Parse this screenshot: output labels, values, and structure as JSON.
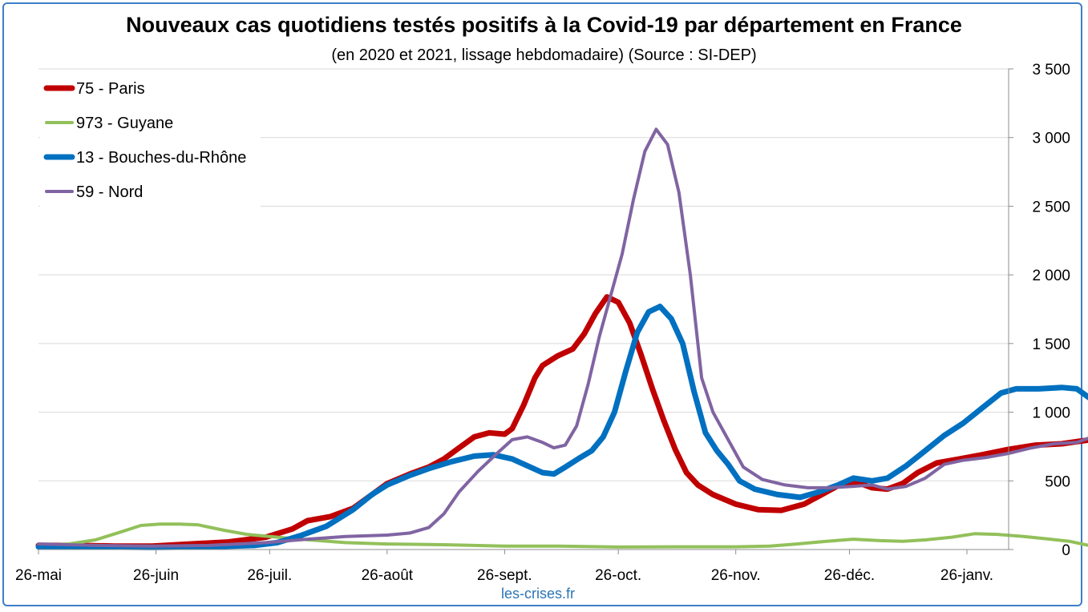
{
  "chart_data": {
    "type": "line",
    "title": "Nouveaux cas quotidiens testés positifs à la Covid-19 par département en France",
    "subtitle": "(en 2020 et 2021, lissage hebdomadaire) (Source : SI-DEP)",
    "source_credit": "les-crises.fr",
    "x_tick_labels": [
      "26-mai",
      "26-juin",
      "26-juil.",
      "26-août",
      "26-sept.",
      "26-oct.",
      "26-nov.",
      "26-déc.",
      "26-janv."
    ],
    "ylim": [
      0,
      3500
    ],
    "y_ticks": [
      0,
      500,
      1000,
      1500,
      2000,
      2500,
      3000,
      3500
    ],
    "y_tick_labels": [
      "0",
      "500",
      "1 000",
      "1 500",
      "2 000",
      "2 500",
      "3 000",
      "3 500"
    ],
    "y_axis_position": "right",
    "grid": true,
    "legend_position": "top-left",
    "x_start": "2020-05-26",
    "x_end": "2021-02-06",
    "series": [
      {
        "name": "75 - Paris",
        "color": "#c00000",
        "width": 7,
        "points": [
          [
            "2020-05-26",
            30
          ],
          [
            "2020-06-05",
            30
          ],
          [
            "2020-06-15",
            25
          ],
          [
            "2020-06-25",
            25
          ],
          [
            "2020-07-05",
            40
          ],
          [
            "2020-07-15",
            55
          ],
          [
            "2020-07-25",
            90
          ],
          [
            "2020-08-01",
            150
          ],
          [
            "2020-08-05",
            210
          ],
          [
            "2020-08-11",
            240
          ],
          [
            "2020-08-17",
            300
          ],
          [
            "2020-08-22",
            400
          ],
          [
            "2020-08-26",
            480
          ],
          [
            "2020-09-01",
            550
          ],
          [
            "2020-09-06",
            600
          ],
          [
            "2020-09-10",
            660
          ],
          [
            "2020-09-14",
            740
          ],
          [
            "2020-09-18",
            820
          ],
          [
            "2020-09-22",
            850
          ],
          [
            "2020-09-26",
            840
          ],
          [
            "2020-09-28",
            880
          ],
          [
            "2020-10-01",
            1050
          ],
          [
            "2020-10-04",
            1250
          ],
          [
            "2020-10-06",
            1340
          ],
          [
            "2020-10-10",
            1410
          ],
          [
            "2020-10-14",
            1460
          ],
          [
            "2020-10-17",
            1570
          ],
          [
            "2020-10-20",
            1720
          ],
          [
            "2020-10-23",
            1840
          ],
          [
            "2020-10-26",
            1800
          ],
          [
            "2020-10-29",
            1650
          ],
          [
            "2020-11-01",
            1420
          ],
          [
            "2020-11-04",
            1170
          ],
          [
            "2020-11-07",
            940
          ],
          [
            "2020-11-10",
            730
          ],
          [
            "2020-11-13",
            560
          ],
          [
            "2020-11-16",
            470
          ],
          [
            "2020-11-20",
            400
          ],
          [
            "2020-11-26",
            330
          ],
          [
            "2020-12-02",
            290
          ],
          [
            "2020-12-08",
            285
          ],
          [
            "2020-12-14",
            330
          ],
          [
            "2020-12-20",
            420
          ],
          [
            "2020-12-24",
            480
          ],
          [
            "2020-12-28",
            490
          ],
          [
            "2021-01-01",
            450
          ],
          [
            "2021-01-05",
            440
          ],
          [
            "2021-01-09",
            480
          ],
          [
            "2021-01-13",
            560
          ],
          [
            "2021-01-18",
            630
          ],
          [
            "2021-01-24",
            660
          ],
          [
            "2021-01-30",
            690
          ],
          [
            "2021-02-06",
            730
          ],
          [
            "2021-02-13",
            760
          ],
          [
            "2021-02-20",
            770
          ],
          [
            "2021-02-25",
            790
          ],
          [
            "2021-02-28",
            800
          ]
        ]
      },
      {
        "name": "973 - Guyane",
        "color": "#92c05a",
        "width": 4,
        "points": [
          [
            "2020-05-26",
            30
          ],
          [
            "2020-06-03",
            40
          ],
          [
            "2020-06-10",
            70
          ],
          [
            "2020-06-17",
            130
          ],
          [
            "2020-06-22",
            175
          ],
          [
            "2020-06-27",
            185
          ],
          [
            "2020-07-02",
            185
          ],
          [
            "2020-07-07",
            180
          ],
          [
            "2020-07-14",
            140
          ],
          [
            "2020-07-20",
            110
          ],
          [
            "2020-07-26",
            95
          ],
          [
            "2020-08-01",
            80
          ],
          [
            "2020-08-08",
            65
          ],
          [
            "2020-08-15",
            50
          ],
          [
            "2020-08-26",
            40
          ],
          [
            "2020-09-10",
            35
          ],
          [
            "2020-09-26",
            25
          ],
          [
            "2020-10-10",
            25
          ],
          [
            "2020-10-26",
            18
          ],
          [
            "2020-11-10",
            20
          ],
          [
            "2020-11-26",
            20
          ],
          [
            "2020-12-05",
            25
          ],
          [
            "2020-12-12",
            40
          ],
          [
            "2020-12-20",
            60
          ],
          [
            "2020-12-27",
            75
          ],
          [
            "2021-01-03",
            65
          ],
          [
            "2021-01-09",
            60
          ],
          [
            "2021-01-15",
            70
          ],
          [
            "2021-01-22",
            90
          ],
          [
            "2021-01-28",
            115
          ],
          [
            "2021-02-03",
            110
          ],
          [
            "2021-02-10",
            95
          ],
          [
            "2021-02-17",
            75
          ],
          [
            "2021-02-22",
            60
          ],
          [
            "2021-02-28",
            25
          ]
        ]
      },
      {
        "name": "13 - Bouches-du-Rhône",
        "color": "#0070c0",
        "width": 7,
        "points": [
          [
            "2020-05-26",
            20
          ],
          [
            "2020-06-10",
            20
          ],
          [
            "2020-06-25",
            15
          ],
          [
            "2020-07-10",
            20
          ],
          [
            "2020-07-22",
            30
          ],
          [
            "2020-07-28",
            50
          ],
          [
            "2020-08-03",
            100
          ],
          [
            "2020-08-10",
            170
          ],
          [
            "2020-08-17",
            290
          ],
          [
            "2020-08-22",
            400
          ],
          [
            "2020-08-26",
            470
          ],
          [
            "2020-09-01",
            540
          ],
          [
            "2020-09-06",
            590
          ],
          [
            "2020-09-12",
            640
          ],
          [
            "2020-09-18",
            680
          ],
          [
            "2020-09-23",
            690
          ],
          [
            "2020-09-28",
            660
          ],
          [
            "2020-10-02",
            610
          ],
          [
            "2020-10-06",
            560
          ],
          [
            "2020-10-09",
            550
          ],
          [
            "2020-10-12",
            600
          ],
          [
            "2020-10-16",
            670
          ],
          [
            "2020-10-19",
            720
          ],
          [
            "2020-10-22",
            820
          ],
          [
            "2020-10-25",
            1000
          ],
          [
            "2020-10-28",
            1300
          ],
          [
            "2020-10-31",
            1580
          ],
          [
            "2020-11-03",
            1730
          ],
          [
            "2020-11-06",
            1770
          ],
          [
            "2020-11-09",
            1680
          ],
          [
            "2020-11-12",
            1500
          ],
          [
            "2020-11-15",
            1150
          ],
          [
            "2020-11-18",
            850
          ],
          [
            "2020-11-21",
            720
          ],
          [
            "2020-11-24",
            620
          ],
          [
            "2020-11-27",
            500
          ],
          [
            "2020-12-01",
            440
          ],
          [
            "2020-12-07",
            400
          ],
          [
            "2020-12-13",
            380
          ],
          [
            "2020-12-18",
            420
          ],
          [
            "2020-12-23",
            470
          ],
          [
            "2020-12-27",
            520
          ],
          [
            "2021-01-01",
            500
          ],
          [
            "2021-01-05",
            520
          ],
          [
            "2021-01-10",
            610
          ],
          [
            "2021-01-15",
            720
          ],
          [
            "2021-01-20",
            830
          ],
          [
            "2021-01-25",
            920
          ],
          [
            "2021-01-30",
            1030
          ],
          [
            "2021-02-04",
            1140
          ],
          [
            "2021-02-08",
            1170
          ],
          [
            "2021-02-14",
            1170
          ],
          [
            "2021-02-20",
            1180
          ],
          [
            "2021-02-24",
            1170
          ],
          [
            "2021-02-28",
            1090
          ]
        ]
      },
      {
        "name": "59 - Nord",
        "color": "#8064a2",
        "width": 4,
        "points": [
          [
            "2020-05-26",
            40
          ],
          [
            "2020-06-10",
            30
          ],
          [
            "2020-06-25",
            25
          ],
          [
            "2020-07-10",
            30
          ],
          [
            "2020-07-25",
            50
          ],
          [
            "2020-08-05",
            75
          ],
          [
            "2020-08-15",
            95
          ],
          [
            "2020-08-26",
            105
          ],
          [
            "2020-09-01",
            120
          ],
          [
            "2020-09-06",
            160
          ],
          [
            "2020-09-10",
            260
          ],
          [
            "2020-09-14",
            420
          ],
          [
            "2020-09-19",
            570
          ],
          [
            "2020-09-24",
            700
          ],
          [
            "2020-09-28",
            800
          ],
          [
            "2020-10-02",
            820
          ],
          [
            "2020-10-06",
            780
          ],
          [
            "2020-10-09",
            740
          ],
          [
            "2020-10-12",
            760
          ],
          [
            "2020-10-15",
            900
          ],
          [
            "2020-10-18",
            1200
          ],
          [
            "2020-10-21",
            1550
          ],
          [
            "2020-10-24",
            1850
          ],
          [
            "2020-10-27",
            2150
          ],
          [
            "2020-10-30",
            2550
          ],
          [
            "2020-11-02",
            2900
          ],
          [
            "2020-11-05",
            3060
          ],
          [
            "2020-11-08",
            2950
          ],
          [
            "2020-11-11",
            2600
          ],
          [
            "2020-11-14",
            2000
          ],
          [
            "2020-11-17",
            1250
          ],
          [
            "2020-11-20",
            1000
          ],
          [
            "2020-11-24",
            800
          ],
          [
            "2020-11-28",
            600
          ],
          [
            "2020-12-03",
            510
          ],
          [
            "2020-12-09",
            470
          ],
          [
            "2020-12-15",
            450
          ],
          [
            "2020-12-21",
            450
          ],
          [
            "2020-12-27",
            460
          ],
          [
            "2021-01-01",
            470
          ],
          [
            "2021-01-05",
            440
          ],
          [
            "2021-01-10",
            460
          ],
          [
            "2021-01-15",
            520
          ],
          [
            "2021-01-20",
            620
          ],
          [
            "2021-01-25",
            650
          ],
          [
            "2021-01-31",
            670
          ],
          [
            "2021-02-06",
            700
          ],
          [
            "2021-02-12",
            740
          ],
          [
            "2021-02-18",
            770
          ],
          [
            "2021-02-24",
            780
          ],
          [
            "2021-02-28",
            820
          ]
        ]
      }
    ]
  }
}
